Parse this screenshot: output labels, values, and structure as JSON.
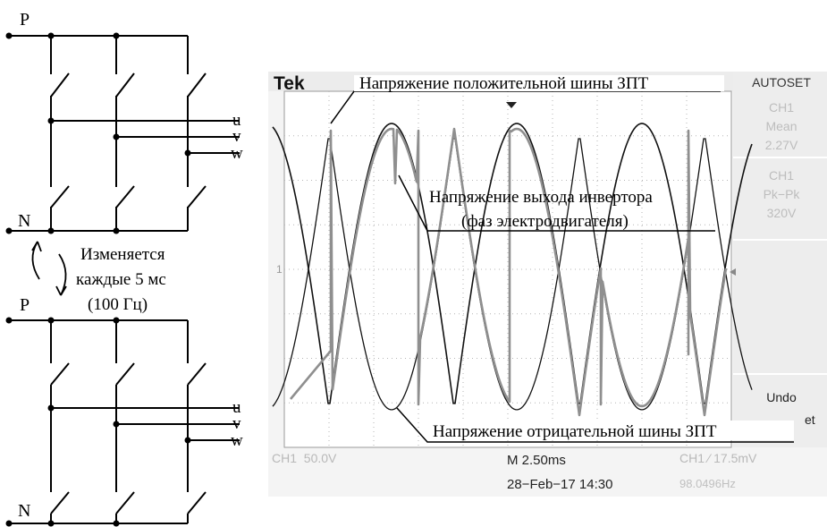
{
  "circuit": {
    "top_bridge": {
      "p_label": "P",
      "n_label": "N",
      "phase_u": "u",
      "phase_v": "v",
      "phase_w": "w"
    },
    "bottom_bridge": {
      "p_label": "P",
      "n_label": "N",
      "phase_u": "u",
      "phase_v": "v",
      "phase_w": "w"
    },
    "switch_note": {
      "line1": "Изменяется",
      "line2": "каждые 5 мс",
      "line3": "(100 Гц)"
    }
  },
  "scope": {
    "brand": "Tek",
    "channel_marker": "1",
    "right_panel": {
      "autoset": "AUTOSET",
      "meas1_ch": "CH1",
      "meas1_type": "Mean",
      "meas1_value": "2.27V",
      "meas2_ch": "CH1",
      "meas2_type": "Pk−Pk",
      "meas2_value": "320V",
      "undo": "Undo",
      "undo2": "et"
    },
    "footer": {
      "ch_scale": "CH1  50.0V",
      "timebase": "M 2.50ms",
      "date": "28−Feb−17 14:30",
      "trigger": "CH1 ⁄ 17.5mV",
      "frequency": "98.0496Hz"
    }
  },
  "annotations": {
    "positive_bus": "Напряжение положительной шины ЗПТ",
    "inverter_output_line1": "Напряжение выхода инвертора",
    "inverter_output_line2": "(фаз электродвигателя)",
    "negative_bus": "Напряжение отрицательной шины ЗПТ"
  },
  "colors": {
    "ink": "#000000",
    "scope_bg": "#ffffff",
    "grid": "#b0b0b0",
    "panel": "#eeeeee",
    "trace": "#8a8a8a",
    "panel_text": "#bdbdbd"
  }
}
